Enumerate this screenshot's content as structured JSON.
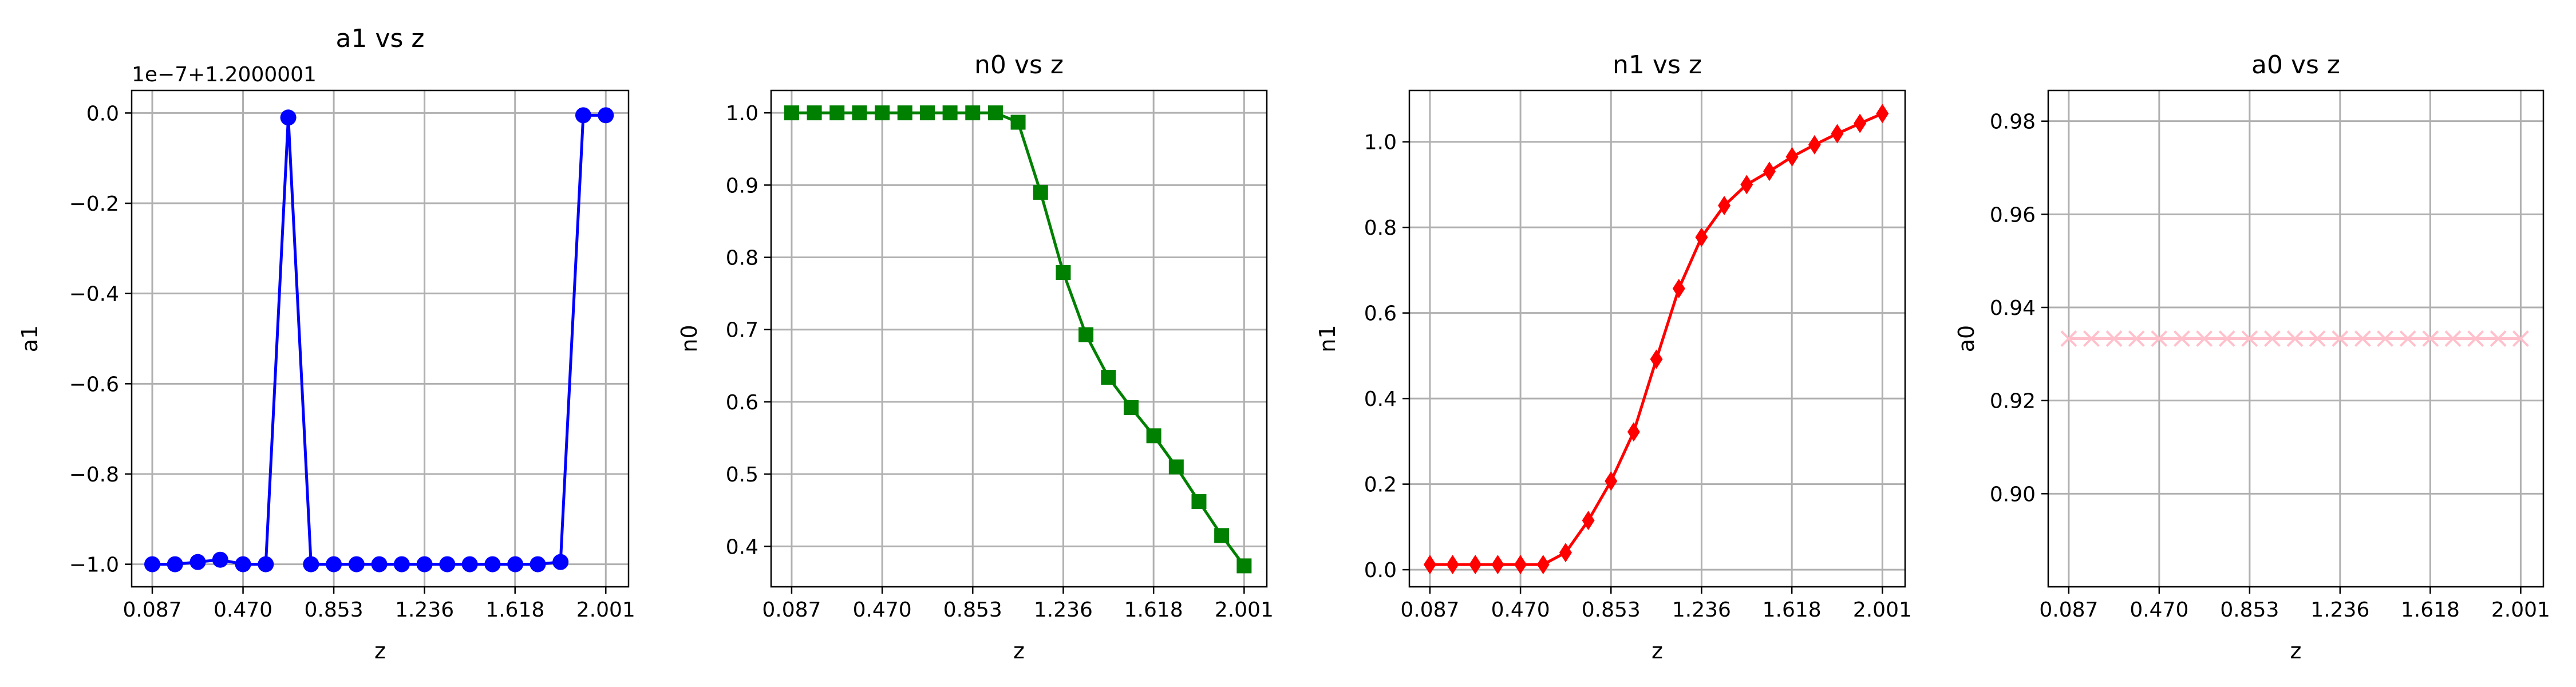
{
  "x_ticks": [
    "0.087",
    "0.470",
    "0.853",
    "1.236",
    "1.618",
    "2.001"
  ],
  "charts": [
    {
      "type": "line",
      "title": "a1 vs z",
      "xlabel": "z",
      "ylabel": "a1",
      "offset_text": "1e−7+1.2000001",
      "color": "#0000ff",
      "marker": "circle",
      "xlim": [
        0.0,
        2.097
      ],
      "ylim": [
        -1.05,
        0.05
      ],
      "yticks": [
        0.0,
        -0.2,
        -0.4,
        -0.6,
        -0.8,
        -1.0
      ],
      "ytick_labels": [
        "0.0",
        "−0.2",
        "−0.4",
        "−0.6",
        "−0.8",
        "−1.0"
      ],
      "x": [
        0.087,
        0.183,
        0.279,
        0.374,
        0.47,
        0.566,
        0.661,
        0.757,
        0.853,
        0.949,
        1.045,
        1.14,
        1.236,
        1.332,
        1.427,
        1.523,
        1.619,
        1.714,
        1.81,
        1.906,
        2.001
      ],
      "y": [
        -1.0,
        -1.0,
        -0.995,
        -0.99,
        -1.0,
        -1.0,
        -0.01,
        -1.0,
        -1.0,
        -1.0,
        -1.0,
        -1.0,
        -1.0,
        -1.0,
        -1.0,
        -1.0,
        -1.0,
        -1.0,
        -0.995,
        -0.005,
        -0.005
      ]
    },
    {
      "type": "line",
      "title": "n0 vs z",
      "xlabel": "z",
      "ylabel": "n0",
      "offset_text": "",
      "color": "#008000",
      "marker": "square",
      "xlim": [
        0.0,
        2.097
      ],
      "ylim": [
        0.344,
        1.031
      ],
      "yticks": [
        1.0,
        0.9,
        0.8,
        0.7,
        0.6,
        0.5,
        0.4
      ],
      "ytick_labels": [
        "1.0",
        "0.9",
        "0.8",
        "0.7",
        "0.6",
        "0.5",
        "0.4"
      ],
      "x": [
        0.087,
        0.183,
        0.279,
        0.374,
        0.47,
        0.566,
        0.661,
        0.757,
        0.853,
        0.949,
        1.045,
        1.14,
        1.236,
        1.332,
        1.427,
        1.523,
        1.619,
        1.714,
        1.81,
        1.906,
        2.001
      ],
      "y": [
        1.0,
        1.0,
        1.0,
        1.0,
        1.0,
        1.0,
        1.0,
        1.0,
        1.0,
        1.0,
        0.987,
        0.89,
        0.779,
        0.693,
        0.634,
        0.592,
        0.553,
        0.51,
        0.462,
        0.415,
        0.373
      ]
    },
    {
      "type": "line",
      "title": "n1 vs z",
      "xlabel": "z",
      "ylabel": "n1",
      "offset_text": "",
      "color": "#ff0000",
      "marker": "diamond",
      "xlim": [
        0.0,
        2.097
      ],
      "ylim": [
        -0.04,
        1.12
      ],
      "yticks": [
        0.0,
        0.2,
        0.4,
        0.6,
        0.8,
        1.0
      ],
      "ytick_labels": [
        "0.0",
        "0.2",
        "0.4",
        "0.6",
        "0.8",
        "1.0"
      ],
      "x": [
        0.087,
        0.183,
        0.279,
        0.374,
        0.47,
        0.566,
        0.661,
        0.757,
        0.853,
        0.949,
        1.045,
        1.14,
        1.236,
        1.332,
        1.427,
        1.523,
        1.619,
        1.714,
        1.81,
        1.906,
        2.001
      ],
      "y": [
        0.012,
        0.012,
        0.012,
        0.012,
        0.012,
        0.012,
        0.04,
        0.115,
        0.207,
        0.322,
        0.492,
        0.657,
        0.777,
        0.851,
        0.9,
        0.931,
        0.965,
        0.993,
        1.019,
        1.043,
        1.066
      ]
    },
    {
      "type": "line",
      "title": "a0 vs z",
      "xlabel": "z",
      "ylabel": "a0",
      "offset_text": "",
      "color": "#ffc0cb",
      "marker": "x",
      "xlim": [
        0.0,
        2.097
      ],
      "ylim": [
        0.88,
        0.9866
      ],
      "yticks": [
        0.98,
        0.96,
        0.94,
        0.92,
        0.9
      ],
      "ytick_labels": [
        "0.98",
        "0.96",
        "0.94",
        "0.92",
        "0.90"
      ],
      "x": [
        0.087,
        0.183,
        0.279,
        0.374,
        0.47,
        0.566,
        0.661,
        0.757,
        0.853,
        0.949,
        1.045,
        1.14,
        1.236,
        1.332,
        1.427,
        1.523,
        1.619,
        1.714,
        1.81,
        1.906,
        2.001
      ],
      "y": [
        0.9333,
        0.9333,
        0.9333,
        0.9333,
        0.9333,
        0.9333,
        0.9333,
        0.9333,
        0.9333,
        0.9333,
        0.9333,
        0.9333,
        0.9333,
        0.9333,
        0.9333,
        0.9333,
        0.9333,
        0.9333,
        0.9333,
        0.9333,
        0.9333
      ]
    }
  ]
}
